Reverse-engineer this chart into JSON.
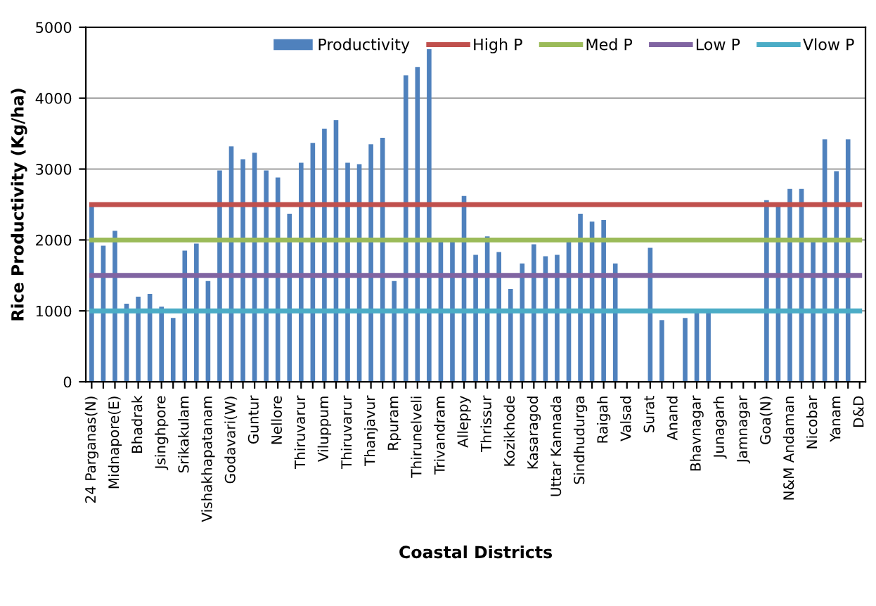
{
  "chart_data": {
    "type": "bar",
    "xlabel": "Coastal Districts",
    "ylabel": "Rice Productivity (Kg/ha)",
    "categories": [
      "24 Parganas(N)",
      null,
      "Midnapore(E)",
      null,
      "Bhadrak",
      null,
      "Jsinghpore",
      null,
      "Srikakulam",
      null,
      "Vishakhapatanam",
      null,
      "Godavari(W)",
      null,
      "Guntur",
      null,
      "Nellore",
      null,
      "Thiruvarur",
      null,
      "Viluppum",
      null,
      "Thiruvarur",
      null,
      "Thanjavur",
      null,
      "Rpuram",
      null,
      "Thirunelveli",
      null,
      "Trivandram",
      null,
      "Alleppy",
      null,
      "Thrissur",
      null,
      "Kozikhode",
      null,
      "Kasaragod",
      null,
      "Uttar Kannada",
      null,
      "Sindhudurga",
      null,
      "Raigah",
      null,
      "Valsad",
      null,
      "Surat",
      null,
      "Anand",
      null,
      "Bhavnagar",
      null,
      "Junagarh",
      null,
      "Jamnagar",
      null,
      "Goa(N)",
      null,
      "N&M Andaman",
      null,
      "Nicobar",
      null,
      "Yanam",
      null,
      "D&D"
    ],
    "series": [
      {
        "name": "Productivity",
        "color": "#4f81bd",
        "values": [
          2490,
          1920,
          2130,
          1100,
          1200,
          1240,
          1060,
          900,
          1850,
          1950,
          1420,
          2980,
          3320,
          3140,
          3230,
          2980,
          2880,
          2370,
          3090,
          3370,
          3570,
          3690,
          3090,
          3070,
          3350,
          3440,
          1420,
          4320,
          4440,
          4690,
          1990,
          1990,
          2620,
          1790,
          2050,
          1830,
          1310,
          1670,
          1940,
          1770,
          1790,
          1990,
          2370,
          2260,
          2280,
          1670,
          null,
          null,
          1890,
          870,
          null,
          900,
          980,
          980,
          null,
          null,
          null,
          null,
          2560,
          2470,
          2720,
          2720,
          1990,
          3420,
          2970,
          3420,
          null
        ]
      },
      {
        "name": "High P",
        "type": "line",
        "color": "#c0504d",
        "values": [
          2500,
          2500,
          2500,
          2500,
          2500,
          2500,
          2500,
          2500,
          2500,
          2500,
          2500,
          2500,
          2500,
          2500,
          2500,
          2500,
          2500,
          2500,
          2500,
          2500,
          2500,
          2500,
          2500,
          2500,
          2500,
          2500,
          2500,
          2500,
          2500,
          2500,
          2500,
          2500,
          2500,
          2500,
          2500,
          2500,
          2500,
          2500,
          2500,
          2500,
          2500,
          2500,
          2500,
          2500,
          2500,
          2500,
          2500,
          2500,
          2500,
          2500,
          2500,
          2500,
          2500,
          2500,
          2500,
          2500,
          2500,
          2500,
          2500,
          2500,
          2500,
          2500,
          2500,
          2500,
          2500,
          2500,
          2500
        ]
      },
      {
        "name": "Med P",
        "type": "line",
        "color": "#9bbb59",
        "values": [
          2000,
          2000,
          2000,
          2000,
          2000,
          2000,
          2000,
          2000,
          2000,
          2000,
          2000,
          2000,
          2000,
          2000,
          2000,
          2000,
          2000,
          2000,
          2000,
          2000,
          2000,
          2000,
          2000,
          2000,
          2000,
          2000,
          2000,
          2000,
          2000,
          2000,
          2000,
          2000,
          2000,
          2000,
          2000,
          2000,
          2000,
          2000,
          2000,
          2000,
          2000,
          2000,
          2000,
          2000,
          2000,
          2000,
          2000,
          2000,
          2000,
          2000,
          2000,
          2000,
          2000,
          2000,
          2000,
          2000,
          2000,
          2000,
          2000,
          2000,
          2000,
          2000,
          2000,
          2000,
          2000,
          2000,
          2000
        ]
      },
      {
        "name": "Low P",
        "type": "line",
        "color": "#8064a2",
        "values": [
          1500,
          1500,
          1500,
          1500,
          1500,
          1500,
          1500,
          1500,
          1500,
          1500,
          1500,
          1500,
          1500,
          1500,
          1500,
          1500,
          1500,
          1500,
          1500,
          1500,
          1500,
          1500,
          1500,
          1500,
          1500,
          1500,
          1500,
          1500,
          1500,
          1500,
          1500,
          1500,
          1500,
          1500,
          1500,
          1500,
          1500,
          1500,
          1500,
          1500,
          1500,
          1500,
          1500,
          1500,
          1500,
          1500,
          1500,
          1500,
          1500,
          1500,
          1500,
          1500,
          1500,
          1500,
          1500,
          1500,
          1500,
          1500,
          1500,
          1500,
          1500,
          1500,
          1500,
          1500,
          1500,
          1500,
          1500
        ]
      },
      {
        "name": "Vlow P",
        "type": "line",
        "color": "#4bacc6",
        "values": [
          1000,
          1000,
          1000,
          1000,
          1000,
          1000,
          1000,
          1000,
          1000,
          1000,
          1000,
          1000,
          1000,
          1000,
          1000,
          1000,
          1000,
          1000,
          1000,
          1000,
          1000,
          1000,
          1000,
          1000,
          1000,
          1000,
          1000,
          1000,
          1000,
          1000,
          1000,
          1000,
          1000,
          1000,
          1000,
          1000,
          1000,
          1000,
          1000,
          1000,
          1000,
          1000,
          1000,
          1000,
          1000,
          1000,
          1000,
          1000,
          1000,
          1000,
          1000,
          1000,
          1000,
          1000,
          1000,
          1000,
          1000,
          1000,
          1000,
          1000,
          1000,
          1000,
          1000,
          1000,
          1000,
          1000,
          1000
        ]
      }
    ],
    "ylim": [
      0,
      5000
    ],
    "yticks": [
      0,
      1000,
      2000,
      3000,
      4000,
      5000
    ],
    "grid": "y",
    "legend": "top right",
    "marker": "none",
    "line_style": "solid"
  }
}
